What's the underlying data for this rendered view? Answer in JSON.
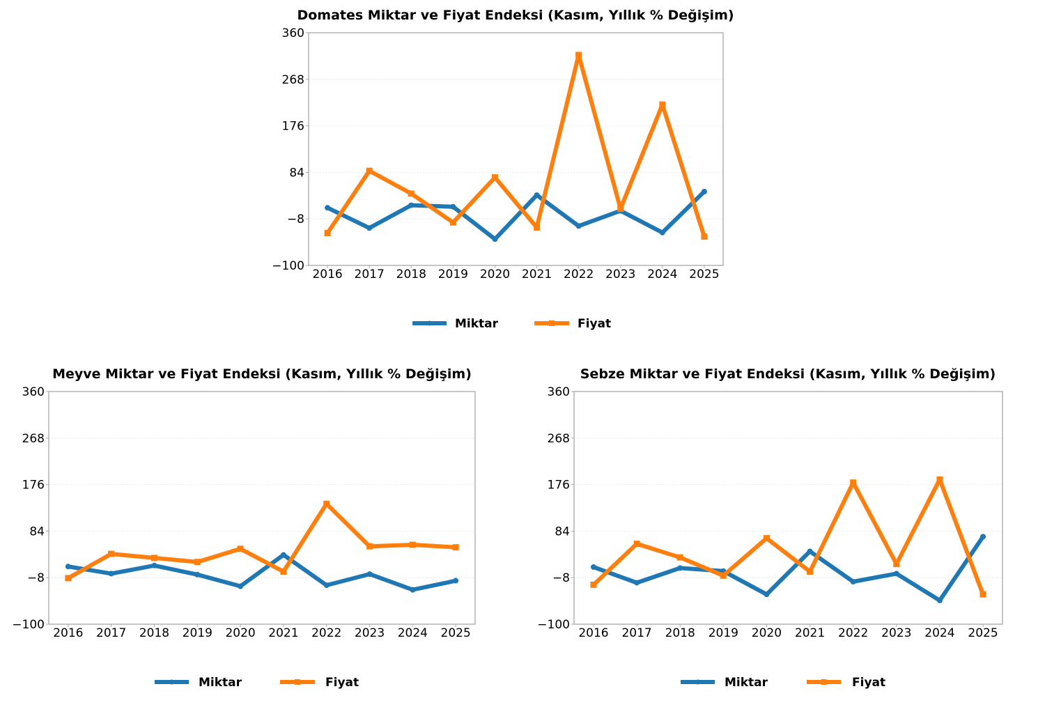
{
  "chart_data": [
    {
      "type": "line",
      "title": "Domates Miktar ve Fiyat Endeksi (Kasım, Yıllık % Değişim)",
      "xlabel": "",
      "ylabel": "",
      "x": [
        "2016",
        "2017",
        "2018",
        "2019",
        "2020",
        "2021",
        "2022",
        "2023",
        "2024",
        "2025"
      ],
      "ylim": [
        -100,
        360
      ],
      "yticks": [
        "360",
        "268",
        "176",
        "84",
        "−8",
        "−100"
      ],
      "ytick_values": [
        360,
        268,
        176,
        84,
        -8,
        -100
      ],
      "grid": true,
      "legend_position": "bottom-center",
      "series": [
        {
          "name": "Miktar",
          "color": "#1f77b4",
          "marker": "circle",
          "values": [
            14,
            -26,
            19,
            16,
            -48,
            39,
            -22,
            8,
            -35,
            46
          ]
        },
        {
          "name": "Fiyat",
          "color": "#ff7f0e",
          "marker": "square",
          "values": [
            -36,
            87,
            42,
            -15,
            74,
            -25,
            316,
            12,
            218,
            -43
          ]
        }
      ]
    },
    {
      "type": "line",
      "title": "Meyve Miktar ve Fiyat Endeksi (Kasım, Yıllık % Değişim)",
      "xlabel": "",
      "ylabel": "",
      "x": [
        "2016",
        "2017",
        "2018",
        "2019",
        "2020",
        "2021",
        "2022",
        "2023",
        "2024",
        "2025"
      ],
      "ylim": [
        -100,
        360
      ],
      "yticks": [
        "360",
        "268",
        "176",
        "84",
        "−8",
        "−100"
      ],
      "ytick_values": [
        360,
        268,
        176,
        84,
        -8,
        -100
      ],
      "grid": true,
      "legend_position": "bottom-center",
      "series": [
        {
          "name": "Miktar",
          "color": "#1f77b4",
          "marker": "circle",
          "values": [
            14,
            0,
            16,
            -2,
            -25,
            37,
            -23,
            -1,
            -32,
            -14
          ]
        },
        {
          "name": "Fiyat",
          "color": "#ff7f0e",
          "marker": "square",
          "values": [
            -9,
            39,
            31,
            23,
            49,
            4,
            138,
            54,
            57,
            52
          ]
        }
      ]
    },
    {
      "type": "line",
      "title": "Sebze Miktar ve Fiyat Endeksi (Kasım, Yıllık % Değişim)",
      "xlabel": "",
      "ylabel": "",
      "x": [
        "2016",
        "2017",
        "2018",
        "2019",
        "2020",
        "2021",
        "2022",
        "2023",
        "2024",
        "2025"
      ],
      "ylim": [
        -100,
        360
      ],
      "yticks": [
        "360",
        "268",
        "176",
        "84",
        "−8",
        "−100"
      ],
      "ytick_values": [
        360,
        268,
        176,
        84,
        -8,
        -100
      ],
      "grid": true,
      "legend_position": "bottom-center",
      "series": [
        {
          "name": "Miktar",
          "color": "#1f77b4",
          "marker": "circle",
          "values": [
            13,
            -18,
            11,
            5,
            -41,
            44,
            -16,
            0,
            -53,
            73
          ]
        },
        {
          "name": "Fiyat",
          "color": "#ff7f0e",
          "marker": "square",
          "values": [
            -22,
            59,
            32,
            -4,
            70,
            4,
            180,
            19,
            186,
            -41
          ]
        }
      ]
    }
  ]
}
